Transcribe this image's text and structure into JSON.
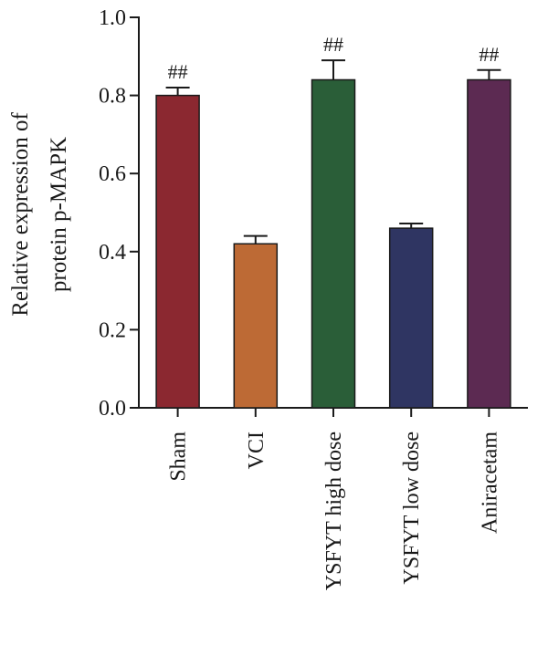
{
  "chart_data": {
    "type": "bar",
    "categories": [
      "Sham",
      "VCI",
      "YSFYT high dose",
      "YSFYT low dose",
      "Aniracetam"
    ],
    "values": [
      0.8,
      0.42,
      0.84,
      0.46,
      0.84
    ],
    "errors": [
      0.02,
      0.02,
      0.05,
      0.012,
      0.025
    ],
    "annotations": [
      "##",
      "",
      "##",
      "",
      "##"
    ],
    "colors": [
      "#8b2830",
      "#bd6a35",
      "#2a5e38",
      "#2f3562",
      "#5c2a52"
    ],
    "title": "",
    "xlabel": "",
    "ylabel": [
      "Relative expression of",
      "protein p-MAPK"
    ],
    "ylim": [
      0,
      1.0
    ],
    "yticks": [
      0.0,
      0.2,
      0.4,
      0.6,
      0.8,
      1.0
    ],
    "ytick_labels": [
      "0.0",
      "0.2",
      "0.4",
      "0.6",
      "0.8",
      "1.0"
    ],
    "grid": false,
    "legend": "none"
  }
}
